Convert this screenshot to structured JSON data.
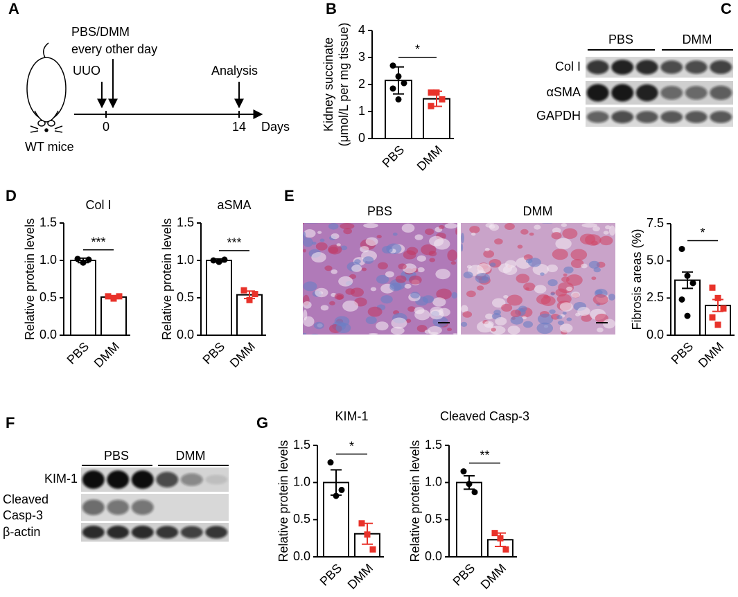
{
  "panels": {
    "A": {
      "label": "A",
      "treatment": [
        "PBS/DMM",
        "every other day"
      ],
      "uuo": "UUO",
      "analysis": "Analysis",
      "day0": "0",
      "day14": "14",
      "days": "Days",
      "mice": "WT mice"
    },
    "B": {
      "label": "B"
    },
    "C": {
      "label": "C",
      "groups": [
        "PBS",
        "DMM"
      ],
      "rows": [
        "Col I",
        "αSMA",
        "GAPDH"
      ]
    },
    "D": {
      "label": "D"
    },
    "E": {
      "label": "E",
      "images": [
        "PBS",
        "DMM"
      ]
    },
    "F": {
      "label": "F",
      "groups": [
        "PBS",
        "DMM"
      ],
      "rows": [
        [
          "KIM-1"
        ],
        [
          "Cleaved",
          "Casp-3"
        ],
        [
          "β-actin"
        ]
      ]
    },
    "G": {
      "label": "G"
    }
  },
  "chart_data": [
    {
      "type": "bar",
      "ylabel": [
        "Kidney succinate",
        "(μmol/L per mg tissue)"
      ],
      "categories": [
        "PBS",
        "DMM"
      ],
      "values": [
        2.15,
        1.47
      ],
      "errors": [
        0.5,
        0.28
      ],
      "points": [
        [
          2.7,
          2.3,
          2.05,
          1.85,
          1.45
        ],
        [
          1.7,
          1.7,
          1.45,
          1.2
        ]
      ],
      "colors": [
        "#000000",
        "#e8322a"
      ],
      "ylim": [
        0,
        4
      ],
      "yticks": [
        0,
        1,
        2,
        3,
        4
      ],
      "significance": "*"
    },
    {
      "type": "bar",
      "title": "Col I",
      "ylabel": [
        "Relative protein levels"
      ],
      "categories": [
        "PBS",
        "DMM"
      ],
      "values": [
        1.0,
        0.51
      ],
      "errors": [
        0.03,
        0.02
      ],
      "points": [
        [
          1.02,
          0.97,
          1.01
        ],
        [
          0.52,
          0.49,
          0.52
        ]
      ],
      "colors": [
        "#000000",
        "#e8322a"
      ],
      "ylim": [
        0,
        1.5
      ],
      "yticks": [
        {
          "value": 0,
          "label": "0.0"
        },
        0.5,
        {
          "value": 1,
          "label": "1.0"
        },
        1.5
      ],
      "significance": "***"
    },
    {
      "type": "bar",
      "title": "aSMA",
      "ylabel": [
        "Relative protein levels"
      ],
      "categories": [
        "PBS",
        "DMM"
      ],
      "values": [
        1.0,
        0.54
      ],
      "errors": [
        0.02,
        0.05
      ],
      "points": [
        [
          1.0,
          0.98,
          1.01
        ],
        [
          0.6,
          0.47,
          0.55
        ]
      ],
      "colors": [
        "#000000",
        "#e8322a"
      ],
      "ylim": [
        0,
        1.5
      ],
      "yticks": [
        {
          "value": 0,
          "label": "0.0"
        },
        0.5,
        {
          "value": 1,
          "label": "1.0"
        },
        1.5
      ],
      "significance": "***"
    },
    {
      "type": "bar",
      "ylabel": [
        "Fibrosis areas (%)"
      ],
      "categories": [
        "PBS",
        "DMM"
      ],
      "values": [
        3.7,
        2.0
      ],
      "errors": [
        0.55,
        0.4
      ],
      "points": [
        [
          5.8,
          4.0,
          3.5,
          2.4,
          1.3
        ],
        [
          3.2,
          2.5,
          1.8,
          1.2,
          0.7
        ]
      ],
      "colors": [
        "#000000",
        "#e8322a"
      ],
      "ylim": [
        0,
        7.5
      ],
      "yticks": [
        {
          "value": 0,
          "label": "0.0"
        },
        2.5,
        {
          "value": 5,
          "label": "5.0"
        },
        7.5
      ],
      "significance": "*"
    },
    {
      "type": "bar",
      "title": "KIM-1",
      "ylabel": [
        "Relative protein levels"
      ],
      "categories": [
        "PBS",
        "DMM"
      ],
      "values": [
        1.0,
        0.31
      ],
      "errors": [
        0.17,
        0.14
      ],
      "points": [
        [
          1.27,
          0.82,
          0.9
        ],
        [
          0.45,
          0.3,
          0.1
        ]
      ],
      "colors": [
        "#000000",
        "#e8322a"
      ],
      "ylim": [
        0,
        1.5
      ],
      "yticks": [
        {
          "value": 0,
          "label": "0.0"
        },
        0.5,
        {
          "value": 1,
          "label": "1.0"
        },
        1.5
      ],
      "significance": "*"
    },
    {
      "type": "bar",
      "title": "Cleaved Casp-3",
      "ylabel": [
        "Relative protein levels"
      ],
      "categories": [
        "PBS",
        "DMM"
      ],
      "values": [
        1.0,
        0.23
      ],
      "errors": [
        0.09,
        0.09
      ],
      "points": [
        [
          1.15,
          0.98,
          0.87
        ],
        [
          0.32,
          0.25,
          0.1
        ]
      ],
      "colors": [
        "#000000",
        "#e8322a"
      ],
      "ylim": [
        0,
        1.5
      ],
      "yticks": [
        {
          "value": 0,
          "label": "0.0"
        },
        0.5,
        {
          "value": 1,
          "label": "1.0"
        },
        1.5
      ],
      "significance": "**"
    }
  ]
}
